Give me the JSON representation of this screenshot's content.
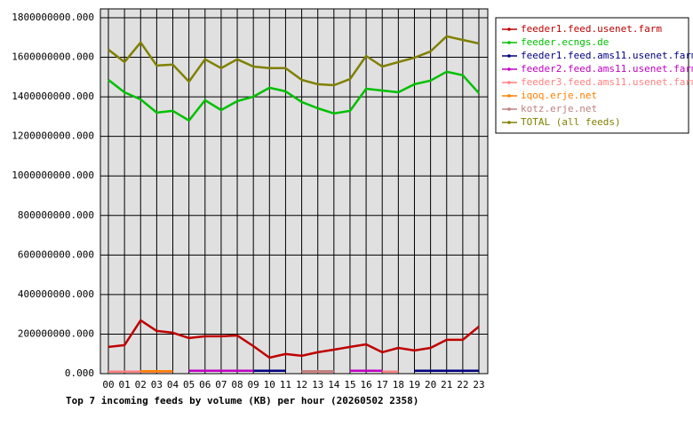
{
  "chart_data": {
    "type": "line",
    "title": "Top 7 incoming feeds by volume (KB) per hour (20260502 2358)",
    "categories": [
      "00",
      "01",
      "02",
      "03",
      "04",
      "05",
      "06",
      "07",
      "08",
      "09",
      "10",
      "11",
      "12",
      "13",
      "14",
      "15",
      "16",
      "17",
      "18",
      "19",
      "20",
      "21",
      "22",
      "23"
    ],
    "ylim": [
      0,
      1800000000
    ],
    "yticks": [
      {
        "value": 0,
        "label": "0.000"
      },
      {
        "value": 200000000,
        "label": "200000000.000"
      },
      {
        "value": 400000000,
        "label": "400000000.000"
      },
      {
        "value": 600000000,
        "label": "600000000.000"
      },
      {
        "value": 800000000,
        "label": "800000000.000"
      },
      {
        "value": 1000000000,
        "label": "1000000000.000"
      },
      {
        "value": 1200000000,
        "label": "1200000000.000"
      },
      {
        "value": 1400000000,
        "label": "1400000000.000"
      },
      {
        "value": 1600000000,
        "label": "1600000000.000"
      },
      {
        "value": 1800000000,
        "label": "1800000000.000"
      }
    ],
    "grid": true,
    "legend": "right",
    "series": [
      {
        "name": "feeder1.feed.usenet.farm",
        "color": "#c00000",
        "values": [
          135000000,
          144000000,
          270000000,
          216000000,
          207000000,
          180000000,
          189000000,
          189000000,
          193000000,
          139000000,
          81000000,
          99000000,
          90000000,
          108000000,
          121000000,
          135000000,
          148000000,
          108000000,
          130000000,
          117000000,
          130000000,
          171000000,
          171000000,
          238000000
        ]
      },
      {
        "name": "feeder.ecngs.de",
        "color": "#00c000",
        "values": [
          1486000000,
          1423000000,
          1387000000,
          1320000000,
          1329000000,
          1280000000,
          1383000000,
          1333000000,
          1378000000,
          1401000000,
          1446000000,
          1428000000,
          1374000000,
          1342000000,
          1316000000,
          1329000000,
          1441000000,
          1432000000,
          1423000000,
          1464000000,
          1482000000,
          1527000000,
          1509000000,
          1419000000
        ]
      },
      {
        "name": "feeder1.feed.ams11.usenet.farm",
        "color": "#000080",
        "values": [
          null,
          null,
          null,
          null,
          null,
          null,
          null,
          null,
          null,
          15000000,
          15000000,
          15000000,
          null,
          null,
          null,
          null,
          null,
          null,
          null,
          15000000,
          15000000,
          15000000,
          15000000,
          15000000
        ]
      },
      {
        "name": "feeder2.feed.ams11.usenet.farm",
        "color": "#c000c0",
        "values": [
          null,
          null,
          null,
          null,
          null,
          15000000,
          15000000,
          15000000,
          15000000,
          15000000,
          null,
          null,
          null,
          null,
          null,
          15000000,
          15000000,
          15000000,
          null,
          null,
          null,
          null,
          null,
          null
        ]
      },
      {
        "name": "feeder3.feed.ams11.usenet.farm",
        "color": "#ff8080",
        "values": [
          10000000,
          10000000,
          10000000,
          10000000,
          10000000,
          null,
          null,
          null,
          null,
          null,
          null,
          null,
          10000000,
          10000000,
          10000000,
          null,
          null,
          10000000,
          10000000,
          null,
          null,
          null,
          null,
          null
        ]
      },
      {
        "name": "iqoq.erje.net",
        "color": "#ff8000",
        "values": [
          null,
          null,
          12000000,
          12000000,
          12000000,
          null,
          null,
          null,
          null,
          null,
          null,
          null,
          null,
          null,
          null,
          null,
          null,
          null,
          null,
          null,
          null,
          null,
          null,
          null
        ]
      },
      {
        "name": "kotz.erje.net",
        "color": "#c08080",
        "values": [
          null,
          null,
          null,
          null,
          null,
          null,
          null,
          null,
          null,
          null,
          null,
          null,
          12000000,
          12000000,
          12000000,
          null,
          null,
          null,
          null,
          null,
          null,
          null,
          null,
          null
        ]
      },
      {
        "name": "TOTAL (all feeds)",
        "color": "#808000",
        "values": [
          1639000000,
          1576000000,
          1675000000,
          1558000000,
          1563000000,
          1477000000,
          1590000000,
          1545000000,
          1590000000,
          1553000000,
          1545000000,
          1545000000,
          1486000000,
          1464000000,
          1459000000,
          1490000000,
          1607000000,
          1553000000,
          1576000000,
          1598000000,
          1630000000,
          1706000000,
          1688000000,
          1670000000
        ]
      }
    ]
  }
}
